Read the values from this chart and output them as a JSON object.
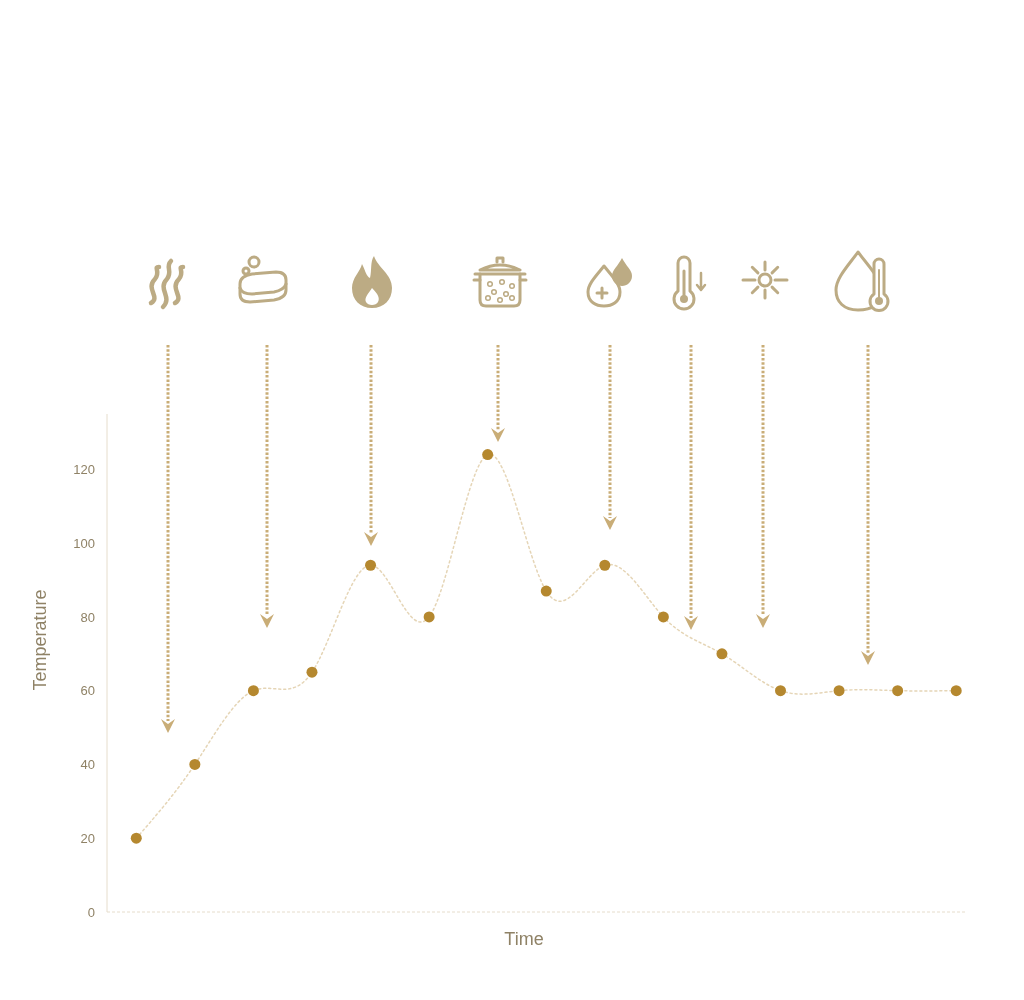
{
  "chart_data": {
    "type": "line",
    "categories": [
      null,
      null,
      null,
      null,
      null,
      null,
      null,
      null,
      null,
      null,
      null,
      null,
      null,
      null,
      null
    ],
    "values": [
      20,
      40,
      60,
      65,
      94,
      80,
      124,
      87,
      94,
      80,
      70,
      60,
      60,
      60,
      60
    ],
    "color": "#b5882f",
    "xlabel": "Time",
    "ylabel": "Temperature",
    "ylim": [
      0,
      135
    ],
    "yticks": [
      0,
      20,
      40,
      60,
      80,
      100,
      120
    ],
    "marker": "circle",
    "line_style": "dotted",
    "tick_labels": "y"
  }
}
